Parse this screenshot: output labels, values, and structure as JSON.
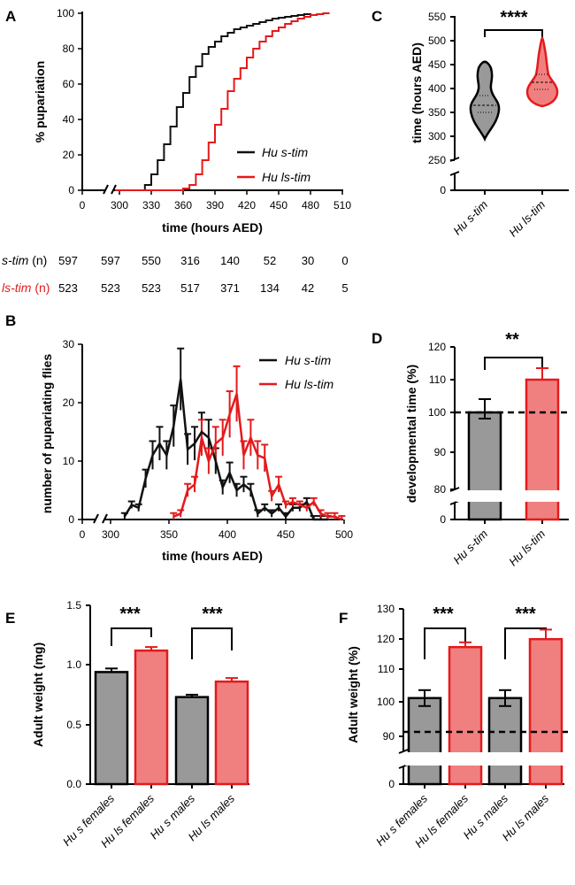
{
  "colors": {
    "black": "#111111",
    "red": "#e41a1c",
    "grey": "#999999",
    "pink": "#f08080"
  },
  "panels": {
    "A": {
      "label": "A",
      "xlabel": "time (hours AED)",
      "ylabel": "% pupariation",
      "xticks": [
        "0",
        "300",
        "330",
        "360",
        "390",
        "420",
        "450",
        "480",
        "510"
      ],
      "yticks": [
        "0",
        "20",
        "40",
        "60",
        "80",
        "100"
      ],
      "legend": [
        "Hu s-tim",
        "Hu ls-tim"
      ]
    },
    "B": {
      "label": "B",
      "xlabel": "time (hours AED)",
      "ylabel": "number of pupariating flies",
      "xticks": [
        "0",
        "300",
        "350",
        "400",
        "450",
        "500"
      ],
      "yticks": [
        "0",
        "10",
        "20",
        "30"
      ],
      "legend": [
        "Hu s-tim",
        "Hu ls-tim"
      ]
    },
    "C": {
      "label": "C",
      "ylabel": "time (hours AED)",
      "sig": "****",
      "yticks": [
        "0",
        "250",
        "300",
        "350",
        "400",
        "450",
        "500",
        "550"
      ],
      "cats": [
        "Hu s-tim",
        "Hu ls-tim"
      ]
    },
    "D": {
      "label": "D",
      "ylabel": "developmental time (%)",
      "sig": "**",
      "yticks": [
        "0",
        "80",
        "90",
        "100",
        "110",
        "120"
      ],
      "cats": [
        "Hu s-tim",
        "Hu ls-tim"
      ]
    },
    "E": {
      "label": "E",
      "ylabel": "Adult weight (mg)",
      "sig1": "***",
      "sig2": "***",
      "yticks": [
        "0.0",
        "0.5",
        "1.0",
        "1.5"
      ],
      "cats": [
        "Hu s females",
        "Hu ls females",
        "Hu s males",
        "Hu ls males"
      ]
    },
    "F": {
      "label": "F",
      "ylabel": "Adult weight (%)",
      "sig1": "***",
      "sig2": "***",
      "yticks": [
        "0",
        "90",
        "100",
        "110",
        "120",
        "130"
      ],
      "cats": [
        "Hu s females",
        "Hu ls females",
        "Hu s males",
        "Hu ls males"
      ]
    }
  },
  "n_table": {
    "s_label": "s-tim",
    "s_unit": " (n)",
    "ls_label": "ls-tim",
    "ls_unit": " (n)",
    "s_values": [
      "597",
      "597",
      "550",
      "316",
      "140",
      "52",
      "30",
      "0"
    ],
    "ls_values": [
      "523",
      "523",
      "523",
      "517",
      "371",
      "134",
      "42",
      "5"
    ]
  },
  "chart_data": [
    {
      "panel": "A",
      "type": "line",
      "xlabel": "time (hours AED)",
      "ylabel": "% pupariation",
      "xlim": [
        0,
        510
      ],
      "ylim": [
        0,
        100
      ],
      "series": [
        {
          "name": "Hu s-tim",
          "x": [
            300,
            318,
            324,
            330,
            336,
            342,
            348,
            354,
            360,
            366,
            372,
            378,
            384,
            390,
            396,
            402,
            408,
            414,
            420,
            426,
            432,
            438,
            444,
            450,
            456,
            462,
            468,
            474,
            480
          ],
          "y": [
            0,
            0,
            3,
            9,
            17,
            26,
            36,
            47,
            55,
            64,
            70,
            77,
            81,
            84,
            87,
            89,
            91,
            92,
            93,
            94,
            95,
            96,
            97,
            97.5,
            98,
            98.5,
            99,
            99.5,
            100
          ]
        },
        {
          "name": "Hu ls-tim",
          "x": [
            342,
            354,
            360,
            366,
            372,
            378,
            384,
            390,
            396,
            402,
            408,
            414,
            420,
            426,
            432,
            438,
            444,
            450,
            456,
            462,
            468,
            474,
            480,
            486,
            492,
            498
          ],
          "y": [
            0,
            0,
            1,
            3,
            9,
            17,
            27,
            37,
            46,
            56,
            63,
            69,
            75,
            80,
            84,
            87,
            90,
            92,
            94,
            95.5,
            97,
            98,
            99,
            99.5,
            100,
            100
          ]
        }
      ]
    },
    {
      "panel": "B",
      "type": "line",
      "xlabel": "time (hours AED)",
      "ylabel": "number of pupariating flies",
      "xlim": [
        0,
        500
      ],
      "ylim": [
        0,
        30
      ],
      "series": [
        {
          "name": "Hu s-tim",
          "x": [
            312,
            318,
            324,
            330,
            336,
            342,
            348,
            354,
            360,
            366,
            372,
            378,
            384,
            390,
            396,
            402,
            408,
            414,
            420,
            426,
            432,
            438,
            444,
            450,
            456,
            462,
            468,
            474,
            480,
            486
          ],
          "y": [
            0.5,
            2.5,
            2,
            7,
            11,
            13,
            11,
            16,
            24,
            12,
            13,
            15,
            14,
            10,
            5.5,
            8,
            5,
            6,
            5,
            1,
            2,
            1,
            2,
            0.5,
            2,
            2,
            3,
            0,
            0,
            0
          ]
        },
        {
          "name": "Hu ls-tim",
          "x": [
            354,
            360,
            366,
            372,
            378,
            384,
            390,
            396,
            402,
            408,
            414,
            420,
            426,
            432,
            438,
            444,
            450,
            456,
            462,
            468,
            474,
            480,
            486,
            492,
            498
          ],
          "y": [
            0.5,
            1,
            5,
            6,
            14,
            10,
            13,
            14,
            18,
            21.5,
            11,
            14,
            11,
            10.5,
            4,
            6,
            2.5,
            3,
            2.5,
            2,
            3,
            1,
            0.5,
            0.5,
            0
          ]
        }
      ]
    },
    {
      "panel": "C",
      "type": "violin",
      "ylabel": "time (hours AED)",
      "categories": [
        "Hu s-tim",
        "Hu ls-tim"
      ],
      "medians": [
        366,
        413
      ],
      "ylim": [
        0,
        550
      ],
      "significance": "****"
    },
    {
      "panel": "D",
      "type": "bar",
      "ylabel": "developmental time (%)",
      "categories": [
        "Hu s-tim",
        "Hu ls-tim"
      ],
      "values": [
        102,
        112
      ],
      "errors": [
        3,
        1.8
      ],
      "reference": 100,
      "ylim": [
        0,
        120
      ],
      "significance": "**"
    },
    {
      "panel": "E",
      "type": "bar",
      "ylabel": "Adult weight (mg)",
      "categories": [
        "Hu s females",
        "Hu ls females",
        "Hu s males",
        "Hu ls males"
      ],
      "values": [
        0.94,
        1.12,
        0.73,
        0.86
      ],
      "errors": [
        0.03,
        0.03,
        0.02,
        0.03
      ],
      "ylim": [
        0,
        1.5
      ],
      "significance": [
        "***",
        "***"
      ]
    },
    {
      "panel": "F",
      "type": "bar",
      "ylabel": "Adult weight (%)",
      "categories": [
        "Hu s females",
        "Hu ls females",
        "Hu s males",
        "Hu ls males"
      ],
      "values": [
        102,
        118,
        102,
        120.5
      ],
      "errors": [
        2.5,
        1.5,
        2.5,
        3
      ],
      "reference": 100,
      "ylim": [
        0,
        130
      ],
      "significance": [
        "***",
        "***"
      ]
    }
  ]
}
